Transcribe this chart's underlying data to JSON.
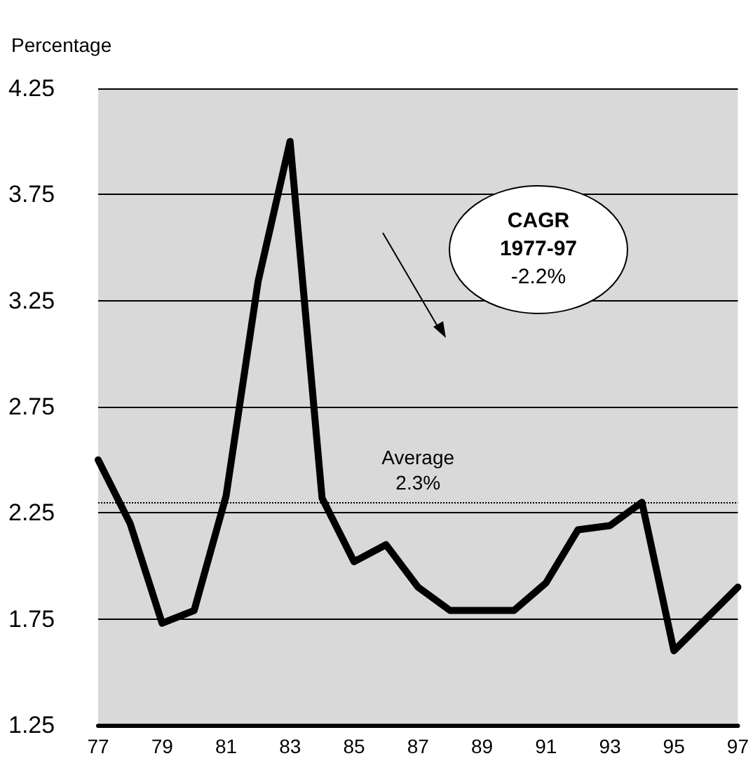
{
  "chart_data": {
    "type": "line",
    "ylabel": "Percentage",
    "categories": [
      "77",
      null,
      "79",
      null,
      "81",
      null,
      "83",
      null,
      "85",
      null,
      "87",
      null,
      "89",
      null,
      "91",
      null,
      "93",
      null,
      "95",
      null,
      "97"
    ],
    "series": [
      {
        "color": "#000000",
        "values": [
          2.5,
          2.2,
          1.73,
          1.79,
          2.33,
          3.34,
          4.0,
          2.32,
          2.02,
          2.1,
          1.9,
          1.79,
          1.79,
          1.79,
          1.92,
          2.17,
          2.19,
          2.3,
          1.6,
          1.75,
          1.9
        ]
      }
    ],
    "ylim": [
      1.25,
      4.25
    ],
    "yticks": [
      1.25,
      1.75,
      2.25,
      2.75,
      3.25,
      3.75,
      4.25
    ],
    "grid": "y",
    "marker": "none",
    "line_style": "solid",
    "ref_lines": [
      {
        "axis": "y",
        "value": 2.3,
        "label": "Average\n2.3%",
        "color": "#000000",
        "line_style": "dotted"
      }
    ],
    "annotations": [
      "CAGR\n1977-97\n-2.2%"
    ]
  }
}
